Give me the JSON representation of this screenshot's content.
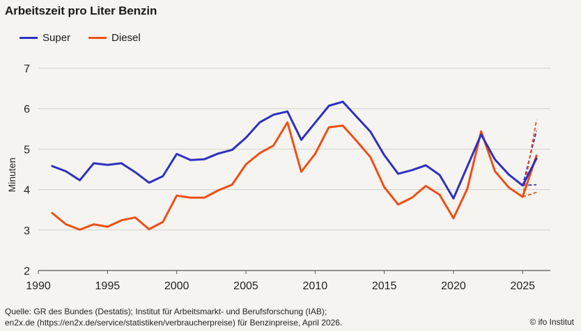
{
  "chart_data": {
    "type": "line",
    "title": "Arbeitszeit pro Liter Benzin",
    "ylabel": "Minuten",
    "xlabel": "",
    "xlim": [
      1990,
      2027
    ],
    "ylim": [
      2,
      7
    ],
    "xticks": [
      1990,
      1995,
      2000,
      2005,
      2010,
      2015,
      2020,
      2025
    ],
    "yticks": [
      2,
      3,
      4,
      5,
      6,
      7
    ],
    "grid": "horizontal",
    "legend_position": "top-left",
    "series": [
      {
        "name": "Super",
        "color": "#2e2fc2",
        "x": [
          1991,
          1992,
          1993,
          1994,
          1995,
          1996,
          1997,
          1998,
          1999,
          2000,
          2001,
          2002,
          2003,
          2004,
          2005,
          2006,
          2007,
          2008,
          2009,
          2010,
          2011,
          2012,
          2013,
          2014,
          2015,
          2016,
          2017,
          2018,
          2019,
          2020,
          2021,
          2022,
          2023,
          2024,
          2025,
          2026
        ],
        "values": [
          4.58,
          4.45,
          4.23,
          4.65,
          4.61,
          4.65,
          4.43,
          4.17,
          4.33,
          4.88,
          4.73,
          4.75,
          4.89,
          4.98,
          5.28,
          5.66,
          5.85,
          5.93,
          5.23,
          5.65,
          6.07,
          6.17,
          5.8,
          5.43,
          4.85,
          4.39,
          4.48,
          4.6,
          4.36,
          3.78,
          4.57,
          5.36,
          4.74,
          4.37,
          4.1,
          4.77
        ]
      },
      {
        "name": "Diesel",
        "color": "#f04e14",
        "x": [
          1991,
          1992,
          1993,
          1994,
          1995,
          1996,
          1997,
          1998,
          1999,
          2000,
          2001,
          2002,
          2003,
          2004,
          2005,
          2006,
          2007,
          2008,
          2009,
          2010,
          2011,
          2012,
          2013,
          2014,
          2015,
          2016,
          2017,
          2018,
          2019,
          2020,
          2021,
          2022,
          2023,
          2024,
          2025,
          2026
        ],
        "values": [
          3.42,
          3.14,
          3.01,
          3.14,
          3.08,
          3.24,
          3.31,
          3.02,
          3.2,
          3.85,
          3.8,
          3.8,
          3.98,
          4.12,
          4.62,
          4.9,
          5.09,
          5.66,
          4.44,
          4.88,
          5.54,
          5.58,
          5.2,
          4.8,
          4.06,
          3.63,
          3.8,
          4.09,
          3.87,
          3.29,
          4.02,
          5.44,
          4.45,
          4.05,
          3.82,
          4.84
        ]
      }
    ],
    "scenarios": [
      {
        "series": "Super",
        "x": [
          2025,
          2026
        ],
        "high": [
          4.1,
          5.45
        ],
        "low": [
          4.1,
          4.12
        ]
      },
      {
        "series": "Diesel",
        "x": [
          2025,
          2026
        ],
        "high": [
          3.82,
          5.72
        ],
        "low": [
          3.82,
          3.93
        ]
      }
    ]
  },
  "source_line1": "Quelle: GR des Bundes (Destatis); Institut für Arbeitsmarkt- und Berufsforschung (IAB);",
  "source_line2": "en2x.de (https://en2x.de/service/statistiken/verbraucherpreise) für Benzinpreise, April 2026.",
  "copyright": "© ifo Institut"
}
